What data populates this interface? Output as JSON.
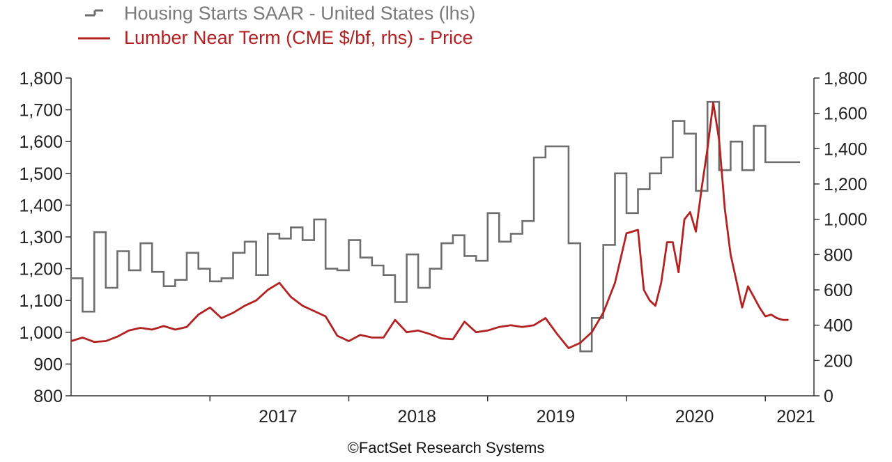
{
  "chart_data": {
    "type": "line",
    "title": "",
    "source": "©FactSet Research Systems",
    "legend_placement": "top-left",
    "grid": false,
    "x_axis": {
      "range": [
        2016.0,
        2021.35
      ],
      "tick_labels": [
        "2017",
        "2018",
        "2019",
        "2020",
        "2021"
      ],
      "tick_label_positions": [
        2017.5,
        2018.5,
        2019.5,
        2020.5,
        2021.5
      ],
      "tick_marks": [
        2017,
        2018,
        2019,
        2020,
        2021
      ]
    },
    "y_axis_left": {
      "range": [
        800,
        1800
      ],
      "ticks": [
        800,
        900,
        1000,
        1100,
        1200,
        1300,
        1400,
        1500,
        1600,
        1700,
        1800
      ],
      "tick_labels": [
        "800",
        "900",
        "1,000",
        "1,100",
        "1,200",
        "1,300",
        "1,400",
        "1,500",
        "1,600",
        "1,700",
        "1,800"
      ]
    },
    "y_axis_right": {
      "range": [
        0,
        1800
      ],
      "ticks": [
        0,
        200,
        400,
        600,
        800,
        1000,
        1200,
        1400,
        1600,
        1800
      ],
      "tick_labels": [
        "0",
        "200",
        "400",
        "600",
        "800",
        "1,000",
        "1,200",
        "1,400",
        "1,600",
        "1,800"
      ]
    },
    "series": [
      {
        "name": "Housing Starts SAAR - United States (lhs)",
        "axis": "left",
        "style": "step",
        "color": "#6e6e6e",
        "x": [
          2016.0,
          2016.083,
          2016.167,
          2016.25,
          2016.333,
          2016.417,
          2016.5,
          2016.583,
          2016.667,
          2016.75,
          2016.833,
          2016.917,
          2017.0,
          2017.083,
          2017.167,
          2017.25,
          2017.333,
          2017.417,
          2017.5,
          2017.583,
          2017.667,
          2017.75,
          2017.833,
          2017.917,
          2018.0,
          2018.083,
          2018.167,
          2018.25,
          2018.333,
          2018.417,
          2018.5,
          2018.583,
          2018.667,
          2018.75,
          2018.833,
          2018.917,
          2019.0,
          2019.083,
          2019.167,
          2019.25,
          2019.333,
          2019.417,
          2019.5,
          2019.583,
          2019.667,
          2019.75,
          2019.833,
          2019.917,
          2020.0,
          2020.083,
          2020.167,
          2020.25,
          2020.333,
          2020.417,
          2020.5,
          2020.583,
          2020.667,
          2020.75,
          2020.833,
          2020.917,
          2021.0,
          2021.083,
          2021.167
        ],
        "values": [
          1170,
          1065,
          1315,
          1140,
          1255,
          1195,
          1280,
          1190,
          1145,
          1165,
          1250,
          1200,
          1160,
          1170,
          1250,
          1285,
          1180,
          1310,
          1295,
          1330,
          1290,
          1355,
          1200,
          1195,
          1290,
          1235,
          1210,
          1180,
          1095,
          1245,
          1140,
          1200,
          1280,
          1305,
          1240,
          1225,
          1375,
          1285,
          1310,
          1350,
          1550,
          1585,
          1585,
          1280,
          940,
          1045,
          1275,
          1500,
          1375,
          1450,
          1500,
          1550,
          1665,
          1625,
          1445,
          1725,
          1510,
          1600,
          1510,
          1650,
          1535,
          1535,
          1535
        ]
      },
      {
        "name": "Lumber Near Term (CME $/bf, rhs) - Price",
        "axis": "right",
        "style": "line",
        "color": "#b22222",
        "x": [
          2016.0,
          2016.083,
          2016.167,
          2016.25,
          2016.333,
          2016.417,
          2016.5,
          2016.583,
          2016.667,
          2016.75,
          2016.833,
          2016.917,
          2017.0,
          2017.083,
          2017.167,
          2017.25,
          2017.333,
          2017.417,
          2017.5,
          2017.583,
          2017.667,
          2017.75,
          2017.833,
          2017.917,
          2018.0,
          2018.083,
          2018.167,
          2018.25,
          2018.333,
          2018.417,
          2018.5,
          2018.583,
          2018.667,
          2018.75,
          2018.833,
          2018.917,
          2019.0,
          2019.083,
          2019.167,
          2019.25,
          2019.333,
          2019.417,
          2019.5,
          2019.583,
          2019.667,
          2019.708,
          2019.75,
          2019.833,
          2019.917,
          2020.0,
          2020.083,
          2020.125,
          2020.167,
          2020.208,
          2020.25,
          2020.292,
          2020.333,
          2020.375,
          2020.417,
          2020.458,
          2020.5,
          2020.542,
          2020.583,
          2020.625,
          2020.667,
          2020.708,
          2020.75,
          2020.792,
          2020.833,
          2020.875,
          2020.917,
          2020.958,
          2021.0,
          2021.042,
          2021.083,
          2021.125,
          2021.167
        ],
        "values": [
          310,
          330,
          305,
          310,
          335,
          370,
          385,
          375,
          395,
          375,
          390,
          460,
          500,
          440,
          470,
          510,
          540,
          600,
          640,
          560,
          510,
          480,
          450,
          340,
          310,
          345,
          330,
          330,
          430,
          360,
          370,
          350,
          325,
          320,
          420,
          360,
          370,
          390,
          400,
          390,
          400,
          440,
          350,
          270,
          300,
          330,
          360,
          470,
          640,
          920,
          940,
          600,
          540,
          510,
          640,
          870,
          870,
          700,
          1000,
          1040,
          930,
          1180,
          1400,
          1660,
          1450,
          1060,
          800,
          650,
          500,
          620,
          560,
          500,
          450,
          460,
          440,
          430,
          430
        ]
      }
    ]
  }
}
